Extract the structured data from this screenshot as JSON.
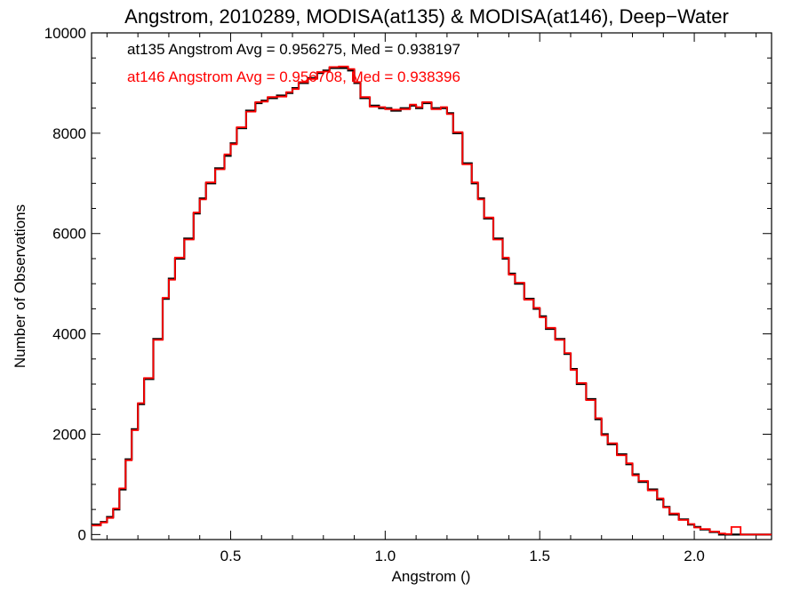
{
  "chart_data": {
    "type": "line",
    "title": "Angstrom, 2010289, MODISA(at135) & MODISA(at146), Deep−Water",
    "xlabel": "Angstrom ()",
    "ylabel": "Number of Observations",
    "xlim": [
      0.05,
      2.25
    ],
    "ylim": [
      -100,
      10000
    ],
    "x_ticks": [
      0.5,
      1.0,
      1.5,
      2.0
    ],
    "x_tick_labels": [
      "0.5",
      "1.0",
      "1.5",
      "2.0"
    ],
    "y_ticks": [
      0,
      2000,
      4000,
      6000,
      8000,
      10000
    ],
    "y_tick_labels": [
      "0",
      "2000",
      "4000",
      "6000",
      "8000",
      "10000"
    ],
    "annotations": [
      {
        "text": "at135 Angstrom Avg = 0.956275, Med = 0.938197",
        "color": "#000000"
      },
      {
        "text": "at146 Angstrom Avg = 0.956708, Med = 0.938396",
        "color": "#ff0000"
      }
    ],
    "x": [
      0.05,
      0.08,
      0.1,
      0.12,
      0.14,
      0.16,
      0.18,
      0.2,
      0.22,
      0.25,
      0.28,
      0.3,
      0.32,
      0.35,
      0.38,
      0.4,
      0.42,
      0.45,
      0.48,
      0.5,
      0.52,
      0.55,
      0.58,
      0.6,
      0.62,
      0.65,
      0.68,
      0.7,
      0.72,
      0.75,
      0.78,
      0.8,
      0.82,
      0.85,
      0.88,
      0.9,
      0.92,
      0.95,
      0.98,
      1.0,
      1.02,
      1.05,
      1.08,
      1.1,
      1.12,
      1.15,
      1.18,
      1.2,
      1.22,
      1.25,
      1.28,
      1.3,
      1.32,
      1.35,
      1.38,
      1.4,
      1.42,
      1.45,
      1.48,
      1.5,
      1.52,
      1.55,
      1.58,
      1.6,
      1.62,
      1.65,
      1.68,
      1.7,
      1.72,
      1.75,
      1.78,
      1.8,
      1.82,
      1.85,
      1.88,
      1.9,
      1.92,
      1.95,
      1.98,
      2.0,
      2.02,
      2.05,
      2.08,
      2.1,
      2.12,
      2.15,
      2.18,
      2.2,
      2.25
    ],
    "series": [
      {
        "color": "#000000",
        "values": [
          200,
          250,
          350,
          500,
          900,
          1500,
          2100,
          2600,
          3100,
          3900,
          4700,
          5100,
          5500,
          5900,
          6400,
          6700,
          7000,
          7300,
          7550,
          7800,
          8100,
          8450,
          8600,
          8650,
          8700,
          8750,
          8800,
          8900,
          9000,
          9100,
          9200,
          9250,
          9300,
          9300,
          9250,
          9000,
          8700,
          8550,
          8500,
          8500,
          8450,
          8500,
          8550,
          8500,
          8600,
          8500,
          8500,
          8400,
          8000,
          7400,
          7000,
          6700,
          6300,
          5900,
          5500,
          5200,
          5000,
          4700,
          4500,
          4350,
          4100,
          3900,
          3600,
          3300,
          3000,
          2700,
          2300,
          2000,
          1800,
          1600,
          1400,
          1200,
          1050,
          900,
          700,
          550,
          400,
          300,
          200,
          150,
          100,
          50,
          0,
          0,
          0,
          0,
          0,
          0,
          0
        ]
      },
      {
        "color": "#ff0000",
        "values": [
          180,
          240,
          330,
          520,
          920,
          1480,
          2080,
          2620,
          3120,
          3880,
          4720,
          5080,
          5520,
          5880,
          6420,
          6680,
          7020,
          7280,
          7580,
          7780,
          8120,
          8430,
          8620,
          8630,
          8720,
          8730,
          8820,
          8880,
          9020,
          9080,
          9220,
          9230,
          9320,
          9330,
          9280,
          9020,
          8720,
          8530,
          8520,
          8480,
          8470,
          8480,
          8570,
          8520,
          8620,
          8480,
          8520,
          8380,
          8020,
          7380,
          7020,
          6680,
          6320,
          5880,
          5520,
          5180,
          5020,
          4680,
          4520,
          4330,
          4120,
          3880,
          3620,
          3280,
          3020,
          2680,
          2320,
          1980,
          1820,
          1580,
          1420,
          1180,
          1070,
          880,
          720,
          540,
          420,
          290,
          210,
          140,
          110,
          60,
          20,
          10,
          150,
          0,
          0,
          0,
          0
        ]
      }
    ]
  }
}
